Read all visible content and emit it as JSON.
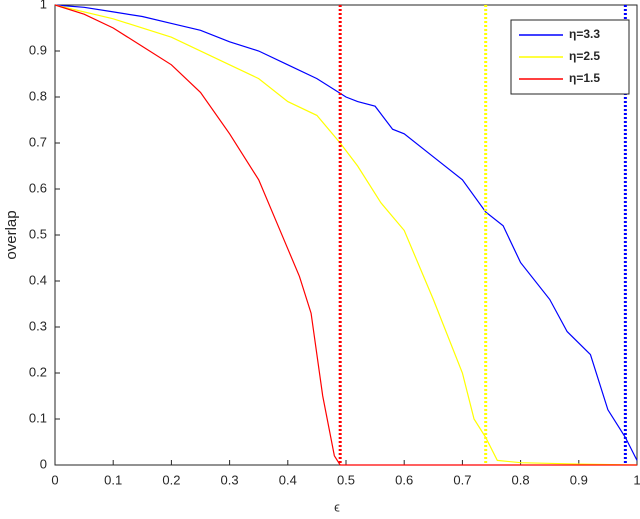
{
  "chart_data": {
    "type": "line",
    "xlabel": "ϵ",
    "ylabel": "overlap",
    "xlim": [
      0,
      1
    ],
    "ylim": [
      0,
      1
    ],
    "xticks": [
      0,
      0.1,
      0.2,
      0.3,
      0.4,
      0.5,
      0.6,
      0.7,
      0.8,
      0.9,
      1
    ],
    "yticks": [
      0,
      0.1,
      0.2,
      0.3,
      0.4,
      0.5,
      0.6,
      0.7,
      0.8,
      0.9,
      1
    ],
    "legend": "northeast",
    "series": [
      {
        "name": "η=3.3",
        "color": "#0000ff",
        "x": [
          0,
          0.05,
          0.1,
          0.15,
          0.2,
          0.25,
          0.3,
          0.35,
          0.4,
          0.45,
          0.5,
          0.52,
          0.55,
          0.58,
          0.6,
          0.65,
          0.7,
          0.74,
          0.77,
          0.8,
          0.85,
          0.88,
          0.92,
          0.95,
          0.98,
          1
        ],
        "values": [
          1,
          0.995,
          0.985,
          0.975,
          0.96,
          0.945,
          0.92,
          0.9,
          0.87,
          0.84,
          0.8,
          0.79,
          0.78,
          0.73,
          0.72,
          0.67,
          0.62,
          0.55,
          0.52,
          0.44,
          0.36,
          0.29,
          0.24,
          0.12,
          0.06,
          0.01
        ]
      },
      {
        "name": "η=2.5",
        "color": "#ffff00",
        "x": [
          0,
          0.1,
          0.2,
          0.3,
          0.35,
          0.4,
          0.45,
          0.49,
          0.52,
          0.56,
          0.6,
          0.65,
          0.7,
          0.72,
          0.74,
          0.76,
          0.8,
          0.9,
          1
        ],
        "values": [
          1,
          0.97,
          0.93,
          0.87,
          0.84,
          0.79,
          0.76,
          0.7,
          0.65,
          0.57,
          0.51,
          0.36,
          0.2,
          0.1,
          0.06,
          0.01,
          0.005,
          0.002,
          0
        ]
      },
      {
        "name": "η=1.5",
        "color": "#ff0000",
        "x": [
          0,
          0.05,
          0.1,
          0.15,
          0.2,
          0.25,
          0.3,
          0.35,
          0.38,
          0.4,
          0.42,
          0.44,
          0.46,
          0.48,
          0.49,
          0.6,
          1
        ],
        "values": [
          1,
          0.98,
          0.95,
          0.91,
          0.87,
          0.81,
          0.72,
          0.62,
          0.53,
          0.47,
          0.41,
          0.33,
          0.15,
          0.02,
          0,
          0,
          0
        ]
      }
    ],
    "vlines": [
      {
        "x": 0.49,
        "color": "#ff0000"
      },
      {
        "x": 0.74,
        "color": "#ffff00"
      },
      {
        "x": 0.98,
        "color": "#0000ff"
      }
    ]
  }
}
